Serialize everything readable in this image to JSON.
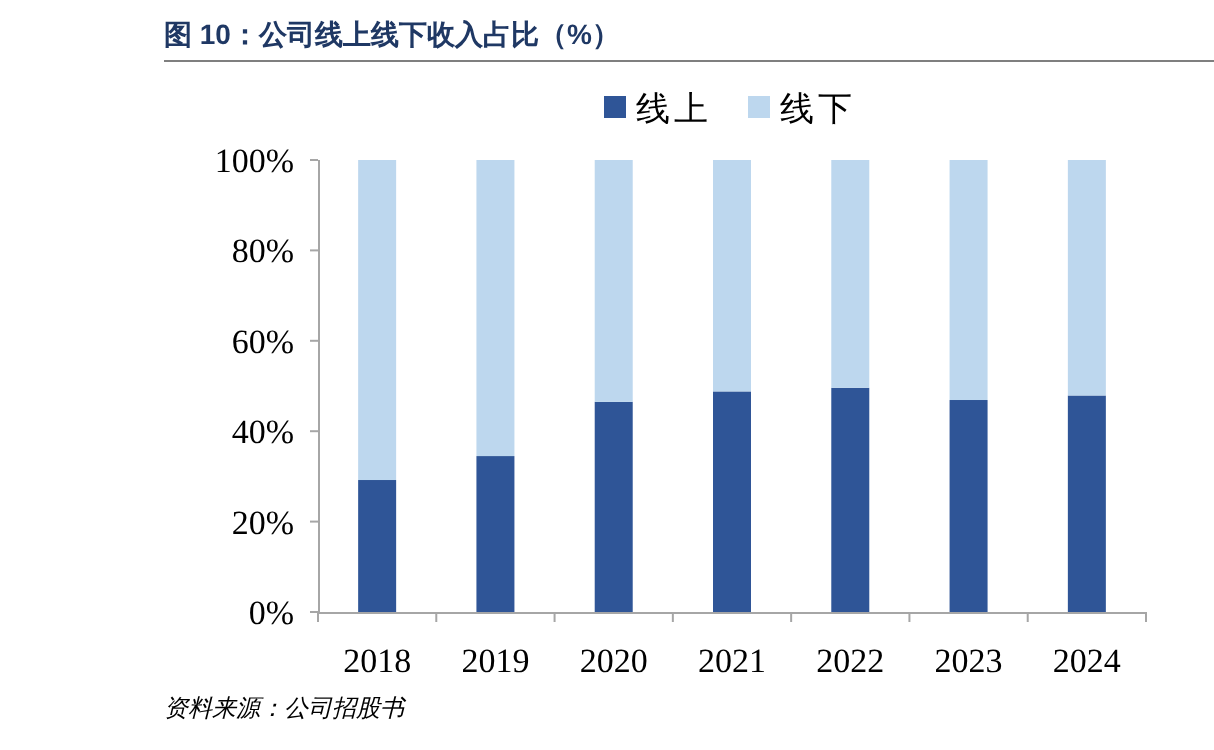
{
  "chart_data": {
    "type": "bar",
    "stacked": true,
    "title": "图 10：公司线上线下收入占比（%）",
    "categories": [
      "2018",
      "2019",
      "2020",
      "2021",
      "2022",
      "2023",
      "2024"
    ],
    "series": [
      {
        "name": "线上",
        "color": "#2f5597",
        "values": [
          29.2,
          34.5,
          46.5,
          48.8,
          49.6,
          46.9,
          47.9
        ]
      },
      {
        "name": "线下",
        "color": "#bdd7ee",
        "values": [
          70.8,
          65.5,
          53.5,
          51.2,
          50.4,
          53.1,
          52.1
        ]
      }
    ],
    "ylim": [
      0,
      100
    ],
    "yticks": [
      {
        "value": 0,
        "label": "0%"
      },
      {
        "value": 20,
        "label": "20%"
      },
      {
        "value": 40,
        "label": "40%"
      },
      {
        "value": 60,
        "label": "60%"
      },
      {
        "value": 80,
        "label": "80%"
      },
      {
        "value": 100,
        "label": "100%"
      }
    ],
    "grid": false,
    "legend": "top",
    "annotations": [
      "资料来源：公司招股书"
    ]
  }
}
